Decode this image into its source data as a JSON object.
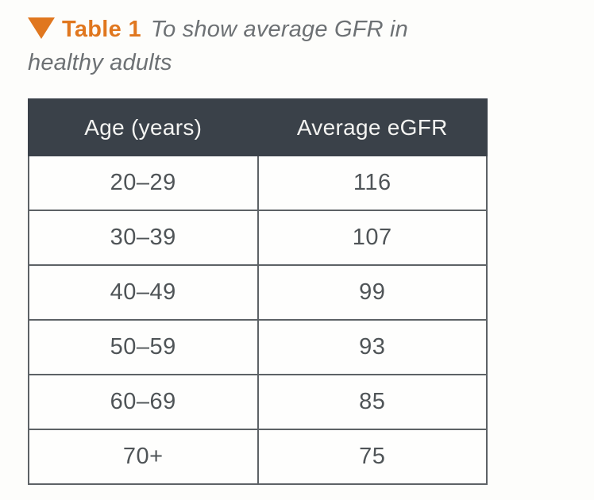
{
  "caption": {
    "marker_icon": "triangle-down",
    "label": "Table 1",
    "text_line1": "To show average GFR in",
    "text_line2": "healthy adults"
  },
  "table": {
    "columns": [
      "Age (years)",
      "Average eGFR"
    ],
    "rows": [
      [
        "20–29",
        "116"
      ],
      [
        "30–39",
        "107"
      ],
      [
        "40–49",
        "99"
      ],
      [
        "50–59",
        "93"
      ],
      [
        "60–69",
        "85"
      ],
      [
        "70+",
        "75"
      ]
    ]
  },
  "chart_data": {
    "type": "table",
    "title": "Table 1 To show average GFR in healthy adults",
    "columns": [
      "Age (years)",
      "Average eGFR"
    ],
    "categories": [
      "20–29",
      "30–39",
      "40–49",
      "50–59",
      "60–69",
      "70+"
    ],
    "values": [
      116,
      107,
      99,
      93,
      85,
      75
    ]
  },
  "colors": {
    "accent_orange": "#e0771f",
    "header_bg": "#3a4149",
    "header_text": "#f3f3f1",
    "cell_text": "#4f5457",
    "border": "#5d6266",
    "caption_text": "#6d7174",
    "background": "#fdfdfb"
  }
}
